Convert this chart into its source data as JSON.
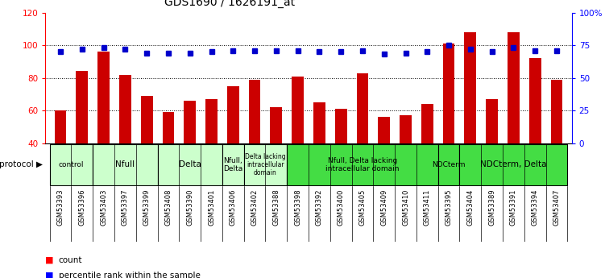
{
  "title": "GDS1690 / 1626191_at",
  "samples": [
    "GSM53393",
    "GSM53396",
    "GSM53403",
    "GSM53397",
    "GSM53399",
    "GSM53408",
    "GSM53390",
    "GSM53401",
    "GSM53406",
    "GSM53402",
    "GSM53388",
    "GSM53398",
    "GSM53392",
    "GSM53400",
    "GSM53405",
    "GSM53409",
    "GSM53410",
    "GSM53411",
    "GSM53395",
    "GSM53404",
    "GSM53389",
    "GSM53391",
    "GSM53394",
    "GSM53407"
  ],
  "counts": [
    60,
    84,
    96,
    82,
    69,
    59,
    66,
    67,
    75,
    79,
    62,
    81,
    65,
    61,
    83,
    56,
    57,
    64,
    101,
    108,
    67,
    108,
    92,
    79
  ],
  "percentiles": [
    70,
    72,
    73,
    72,
    69,
    69,
    69,
    70,
    71,
    71,
    71,
    71,
    70,
    70,
    71,
    68,
    69,
    70,
    75,
    72,
    70,
    73,
    71,
    71
  ],
  "ylim_left": [
    40,
    120
  ],
  "ylim_right": [
    0,
    100
  ],
  "yticks_left": [
    40,
    60,
    80,
    100,
    120
  ],
  "yticks_right": [
    0,
    25,
    50,
    75,
    100
  ],
  "ytick_labels_right": [
    "0",
    "25",
    "50",
    "75",
    "100%"
  ],
  "bar_color": "#cc0000",
  "dot_color": "#0000cc",
  "label_bg_color": "#cccccc",
  "groups": [
    {
      "label": "control",
      "start": 0,
      "end": 2,
      "color": "#ccffcc"
    },
    {
      "label": "Nfull",
      "start": 2,
      "end": 5,
      "color": "#ccffcc"
    },
    {
      "label": "Delta",
      "start": 5,
      "end": 8,
      "color": "#ccffcc"
    },
    {
      "label": "Nfull,\nDelta",
      "start": 8,
      "end": 9,
      "color": "#ccffcc"
    },
    {
      "label": "Delta lacking\nintracellular\ndomain",
      "start": 9,
      "end": 11,
      "color": "#ccffcc"
    },
    {
      "label": "Nfull, Delta lacking\nintracellular domain",
      "start": 11,
      "end": 18,
      "color": "#44dd44"
    },
    {
      "label": "NDCterm",
      "start": 18,
      "end": 19,
      "color": "#44dd44"
    },
    {
      "label": "NDCterm, Delta",
      "start": 19,
      "end": 24,
      "color": "#44dd44"
    }
  ],
  "background_color": "#ffffff",
  "title_fontsize": 10,
  "protocol_label": "protocol"
}
